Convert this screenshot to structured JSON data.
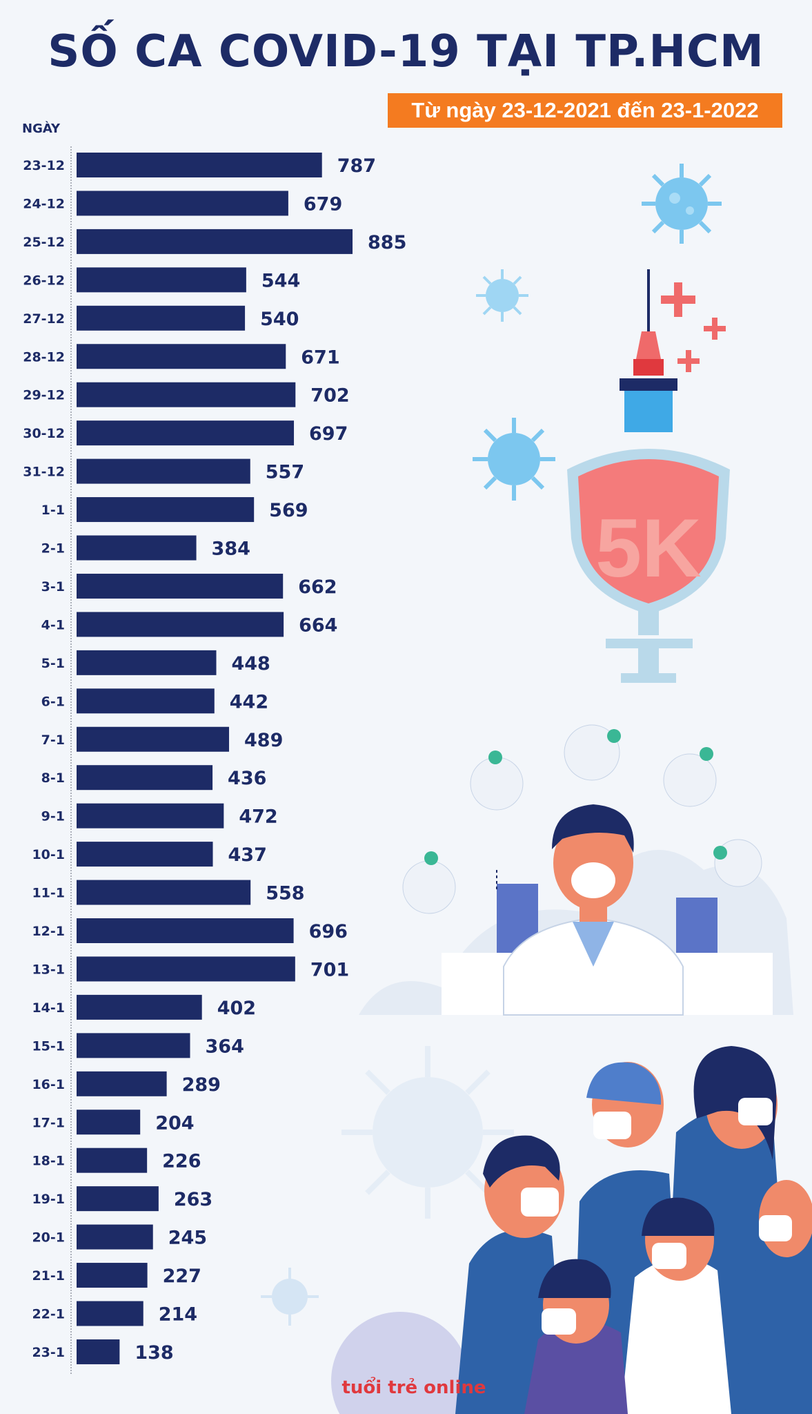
{
  "title": "SỐ CA COVID-19 TẠI TP.HCM",
  "subtitle": "Từ ngày 23-12-2021 đến 23-1-2022",
  "ylabel": "NGÀY",
  "logo_text": "tuổi trẻ online",
  "shield_text": "5K",
  "colors": {
    "bar": "#1d2b66",
    "title": "#1d2b66",
    "subtitle_bg": "#f47b20",
    "background": "#f3f6fa"
  },
  "chart_data": {
    "type": "bar",
    "orientation": "horizontal",
    "categories": [
      "23-12",
      "24-12",
      "25-12",
      "26-12",
      "27-12",
      "28-12",
      "29-12",
      "30-12",
      "31-12",
      "1-1",
      "2-1",
      "3-1",
      "4-1",
      "5-1",
      "6-1",
      "7-1",
      "8-1",
      "9-1",
      "10-1",
      "11-1",
      "12-1",
      "13-1",
      "14-1",
      "15-1",
      "16-1",
      "17-1",
      "18-1",
      "19-1",
      "20-1",
      "21-1",
      "22-1",
      "23-1"
    ],
    "values": [
      787,
      679,
      885,
      544,
      540,
      671,
      702,
      697,
      557,
      569,
      384,
      662,
      664,
      448,
      442,
      489,
      436,
      472,
      437,
      558,
      696,
      701,
      402,
      364,
      289,
      204,
      226,
      263,
      245,
      227,
      214,
      138
    ],
    "title": "SỐ CA COVID-19 TẠI TP.HCM",
    "subtitle": "Từ ngày 23-12-2021 đến 23-1-2022",
    "ylabel": "NGÀY",
    "xlabel": "",
    "data_labels": true,
    "grid": false
  }
}
